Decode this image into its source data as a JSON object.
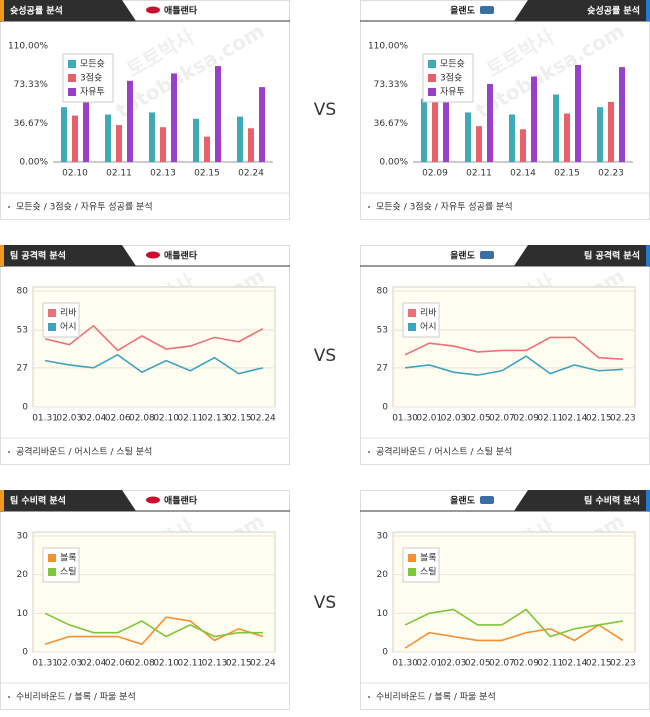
{
  "vs": "VS",
  "watermark": {
    "korean": "토토박사",
    "site": "totobaksa.com"
  },
  "chart_data": [
    {
      "type": "bar",
      "title": "슛성공률 분석",
      "team": "애틀랜타",
      "footer": "모든슛 / 3점슛 / 자유투 성공률 분석",
      "categories": [
        "02.10",
        "02.11",
        "02.13",
        "02.15",
        "02.24"
      ],
      "series": [
        {
          "name": "모든슛",
          "color": "#3fa9b8",
          "values": [
            52,
            45,
            47,
            41,
            43
          ]
        },
        {
          "name": "3점슛",
          "color": "#e8616a",
          "values": [
            44,
            35,
            33,
            24,
            32
          ]
        },
        {
          "name": "자유투",
          "color": "#9a40c8",
          "values": [
            68,
            77,
            84,
            91,
            71
          ]
        }
      ],
      "ylim": [
        0,
        110
      ],
      "yticks": [
        {
          "value": 0,
          "label": "0.00%"
        },
        {
          "value": 36.67,
          "label": "36.67%"
        },
        {
          "value": 73.33,
          "label": "73.33%"
        },
        {
          "value": 110,
          "label": "110.00%"
        }
      ],
      "grid": false
    },
    {
      "type": "bar",
      "title": "슛성공률 분석",
      "team": "올랜도",
      "footer": "모든슛 / 3점슛 / 자유투 성공률 분석",
      "categories": [
        "02.09",
        "02.11",
        "02.14",
        "02.15",
        "02.23"
      ],
      "series": [
        {
          "name": "모든슛",
          "color": "#3fa9b8",
          "values": [
            60,
            47,
            45,
            64,
            52
          ]
        },
        {
          "name": "3점슛",
          "color": "#e8616a",
          "values": [
            60,
            34,
            31,
            46,
            57
          ]
        },
        {
          "name": "자유투",
          "color": "#9a40c8",
          "values": [
            65,
            74,
            81,
            92,
            90
          ]
        }
      ],
      "ylim": [
        0,
        110
      ],
      "yticks": [
        {
          "value": 0,
          "label": "0.00%"
        },
        {
          "value": 36.67,
          "label": "36.67%"
        },
        {
          "value": 73.33,
          "label": "73.33%"
        },
        {
          "value": 110,
          "label": "110.00%"
        }
      ],
      "grid": false
    },
    {
      "type": "line",
      "title": "팀 공격력 분석",
      "team": "애틀랜타",
      "footer": "공격리바운드 / 어시스트 / 스틸 분석",
      "categories": [
        "01.31",
        "02.03",
        "02.04",
        "02.06",
        "02.08",
        "02.10",
        "02.11",
        "02.13",
        "02.15",
        "02.24"
      ],
      "series": [
        {
          "name": "리바",
          "color": "#ec7078",
          "values": [
            47,
            43,
            56,
            39,
            49,
            40,
            42,
            48,
            45,
            54
          ]
        },
        {
          "name": "어시",
          "color": "#3fa3c0",
          "values": [
            32,
            29,
            27,
            36,
            24,
            32,
            25,
            34,
            23,
            27
          ]
        }
      ],
      "ylim": [
        0,
        80
      ],
      "yticks": [
        0,
        27,
        53,
        80
      ],
      "grid": true
    },
    {
      "type": "line",
      "title": "팀 공격력 분석",
      "team": "올랜도",
      "footer": "공격리바운드 / 어시스트 / 스틸 분석",
      "categories": [
        "01.30",
        "02.01",
        "02.03",
        "02.05",
        "02.07",
        "02.09",
        "02.11",
        "02.14",
        "02.15",
        "02.23"
      ],
      "series": [
        {
          "name": "리바",
          "color": "#ec7078",
          "values": [
            36,
            44,
            42,
            38,
            39,
            39,
            48,
            48,
            34,
            33
          ]
        },
        {
          "name": "어시",
          "color": "#3fa3c0",
          "values": [
            27,
            29,
            24,
            22,
            25,
            35,
            23,
            29,
            25,
            26
          ]
        }
      ],
      "ylim": [
        0,
        80
      ],
      "yticks": [
        0,
        27,
        53,
        80
      ],
      "grid": true
    },
    {
      "type": "line",
      "title": "팀 수비력 분석",
      "team": "애틀랜타",
      "footer": "수비리바운드 / 블록 / 파울 분석",
      "categories": [
        "01.31",
        "02.03",
        "02.04",
        "02.06",
        "02.08",
        "02.10",
        "02.11",
        "02.13",
        "02.15",
        "02.24"
      ],
      "series": [
        {
          "name": "블록",
          "color": "#f39033",
          "values": [
            2,
            4,
            4,
            4,
            2,
            9,
            8,
            3,
            6,
            4
          ]
        },
        {
          "name": "스틸",
          "color": "#7ec63a",
          "values": [
            10,
            7,
            5,
            5,
            8,
            4,
            7,
            4,
            5,
            5
          ]
        }
      ],
      "ylim": [
        0,
        30
      ],
      "yticks": [
        0,
        10,
        20,
        30
      ],
      "grid": true
    },
    {
      "type": "line",
      "title": "팀 수비력 분석",
      "team": "올랜도",
      "footer": "수비리바운드 / 블록 / 파울 분석",
      "categories": [
        "01.30",
        "02.01",
        "02.03",
        "02.05",
        "02.07",
        "02.09",
        "02.11",
        "02.14",
        "02.15",
        "02.23"
      ],
      "series": [
        {
          "name": "블록",
          "color": "#f39033",
          "values": [
            1,
            5,
            4,
            3,
            3,
            5,
            6,
            3,
            7,
            3
          ]
        },
        {
          "name": "스틸",
          "color": "#7ec63a",
          "values": [
            7,
            10,
            11,
            7,
            7,
            11,
            4,
            6,
            7,
            8
          ]
        }
      ],
      "ylim": [
        0,
        30
      ],
      "yticks": [
        0,
        10,
        20,
        30
      ],
      "grid": true
    }
  ]
}
